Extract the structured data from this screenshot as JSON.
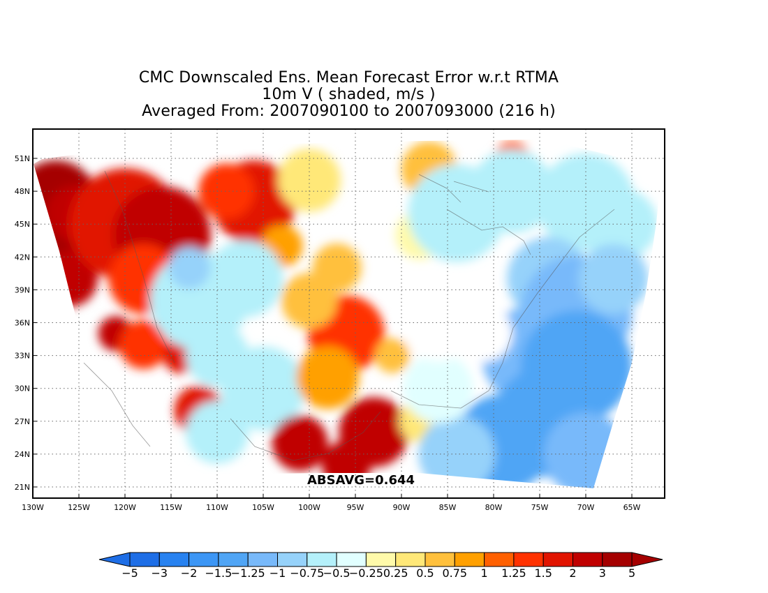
{
  "title": {
    "line1": "CMC Downscaled Ens. Mean Forecast Error w.r.t RTMA",
    "line2": "10m V ( shaded, m/s )",
    "line3": "Averaged From: 2007090100 to 2007093000 (216 h)"
  },
  "map": {
    "lat_labels": [
      "51N",
      "48N",
      "45N",
      "42N",
      "39N",
      "36N",
      "33N",
      "30N",
      "27N",
      "24N",
      "21N"
    ],
    "lat_values": [
      51,
      48,
      45,
      42,
      39,
      36,
      33,
      30,
      27,
      24,
      21
    ],
    "lon_labels": [
      "130W",
      "125W",
      "120W",
      "115W",
      "110W",
      "105W",
      "100W",
      "95W",
      "90W",
      "85W",
      "80W",
      "75W",
      "70W",
      "65W"
    ],
    "lon_values": [
      -130,
      -125,
      -120,
      -115,
      -110,
      -105,
      -100,
      -95,
      -90,
      -85,
      -80,
      -75,
      -70,
      -65
    ],
    "lon_range": [
      -130,
      -62
    ],
    "lat_range": [
      20,
      52
    ],
    "grid": "dotted",
    "annotation": "ABSAVG=0.644"
  },
  "colorbar": {
    "labels": [
      "−5",
      "−3",
      "−2",
      "−1.5",
      "−1.25",
      "−1",
      "−0.75",
      "−0.5",
      "−0.25",
      "0.25",
      "0.5",
      "0.75",
      "1",
      "1.25",
      "1.5",
      "2",
      "3",
      "5"
    ],
    "colors": [
      "#1e6ee6",
      "#2882f0",
      "#3c96f5",
      "#50a5f5",
      "#78b9fa",
      "#96d2fa",
      "#b4f0fa",
      "#e1ffff",
      "#ffffff",
      "#fffaaa",
      "#ffe878",
      "#ffc03c",
      "#ffa000",
      "#ff6000",
      "#ff3200",
      "#e11400",
      "#c00000",
      "#a50000"
    ],
    "left_arrow_color": "#1e6ee6",
    "right_arrow_color": "#a50000"
  }
}
